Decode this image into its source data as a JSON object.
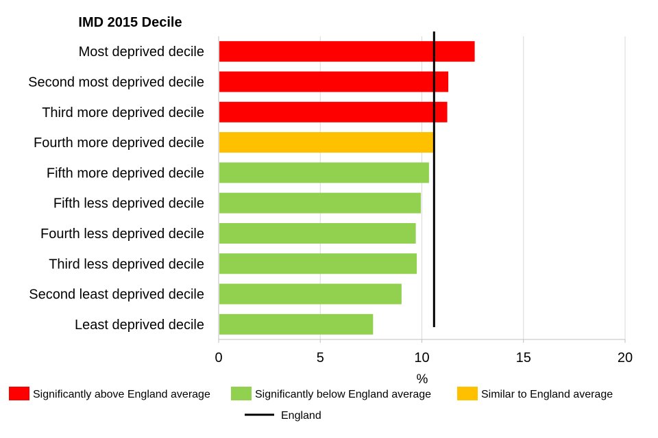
{
  "chart_data": {
    "type": "bar",
    "orientation": "horizontal",
    "title": "IMD 2015 Decile",
    "xlabel": "%",
    "xlim": [
      0,
      20
    ],
    "xticks": [
      0,
      5,
      10,
      15,
      20
    ],
    "grid": "vertical",
    "legend_position": "bottom",
    "categories": [
      "Most deprived decile",
      "Second most deprived decile",
      "Third more deprived decile",
      "Fourth more deprived decile",
      "Fifth more deprived decile",
      "Fifth less deprived decile",
      "Fourth less deprived decile",
      "Third less deprived decile",
      "Second least deprived decile",
      "Least deprived decile"
    ],
    "values": [
      12.6,
      11.3,
      11.25,
      10.55,
      10.35,
      9.95,
      9.7,
      9.75,
      9.0,
      7.6
    ],
    "status": [
      "above",
      "above",
      "above",
      "similar",
      "below",
      "below",
      "below",
      "below",
      "below",
      "below"
    ],
    "reference_line": {
      "name": "England",
      "value": 10.6,
      "color": "#000000"
    },
    "legend": [
      {
        "key": "above",
        "label": "Significantly above England average",
        "color": "#ff0000"
      },
      {
        "key": "below",
        "label": "Significantly below  England average",
        "color": "#92d050"
      },
      {
        "key": "similar",
        "label": "Similar to England average",
        "color": "#ffc000"
      },
      {
        "key": "line",
        "label": "England",
        "color": "#000000"
      }
    ]
  }
}
